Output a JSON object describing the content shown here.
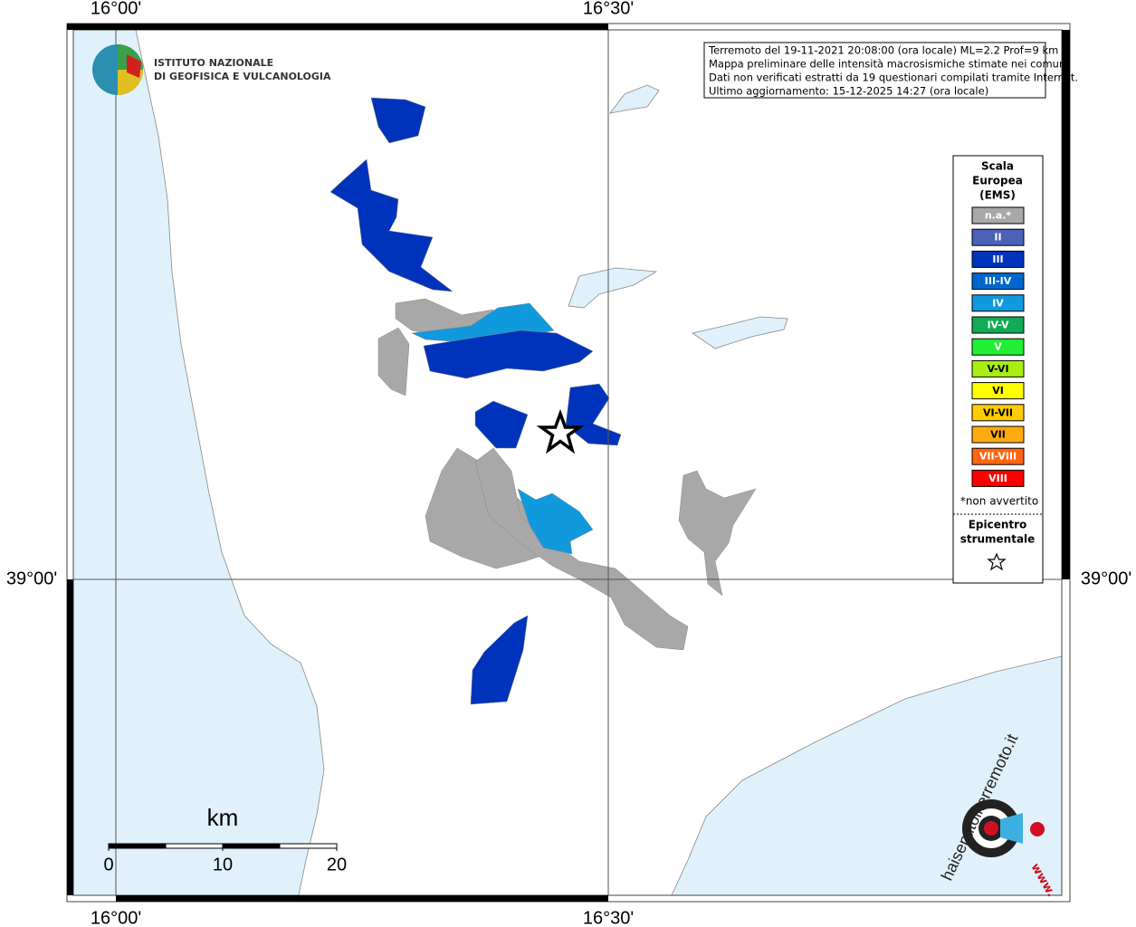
{
  "axes": {
    "top": [
      "16°00'",
      "16°30'"
    ],
    "bottom": [
      "16°00'",
      "16°30'"
    ],
    "left": [
      "39°00'"
    ],
    "right": [
      "39°00'"
    ]
  },
  "logo": {
    "lines": [
      "ISTITUTO NAZIONALE",
      "DI GEOFISICA E VULCANOLOGIA"
    ]
  },
  "info": {
    "lines": [
      "Terremoto del 19-11-2021 20:08:00 (ora locale) ML=2.2 Prof=9 km",
      "Mappa preliminare delle intensità macrosismiche stimate nei comuni",
      "Dati non verificati estratti da 19 questionari compilati tramite Internet.",
      "Ultimo aggiornamento: 15-12-2025 14:27 (ora locale)"
    ]
  },
  "legend": {
    "title": [
      "Scala",
      "Europea",
      "(EMS)"
    ],
    "items": [
      {
        "label": "n.a.*",
        "color": "#a8a8a8"
      },
      {
        "label": "II",
        "color": "#4a62b8"
      },
      {
        "label": "III",
        "color": "#0033bb"
      },
      {
        "label": "III-IV",
        "color": "#0066cc"
      },
      {
        "label": "IV",
        "color": "#1199dd"
      },
      {
        "label": "IV-V",
        "color": "#11aa55"
      },
      {
        "label": "V",
        "color": "#22ee33"
      },
      {
        "label": "V-VI",
        "color": "#aaee11"
      },
      {
        "label": "VI",
        "color": "#ffff00"
      },
      {
        "label": "VI-VII",
        "color": "#ffcc00"
      },
      {
        "label": "VII",
        "color": "#ffaa11"
      },
      {
        "label": "VII-VIII",
        "color": "#ff6611"
      },
      {
        "label": "VIII",
        "color": "#ff0000"
      }
    ],
    "note": "*non avvertito",
    "epicenter": [
      "Epicentro",
      "strumentale"
    ]
  },
  "scale_bar": {
    "unit": "km",
    "ticks": [
      0,
      10,
      20
    ]
  },
  "site_logo": {
    "prefix": "www.",
    "text": "haisentitoilterremoto.it"
  }
}
